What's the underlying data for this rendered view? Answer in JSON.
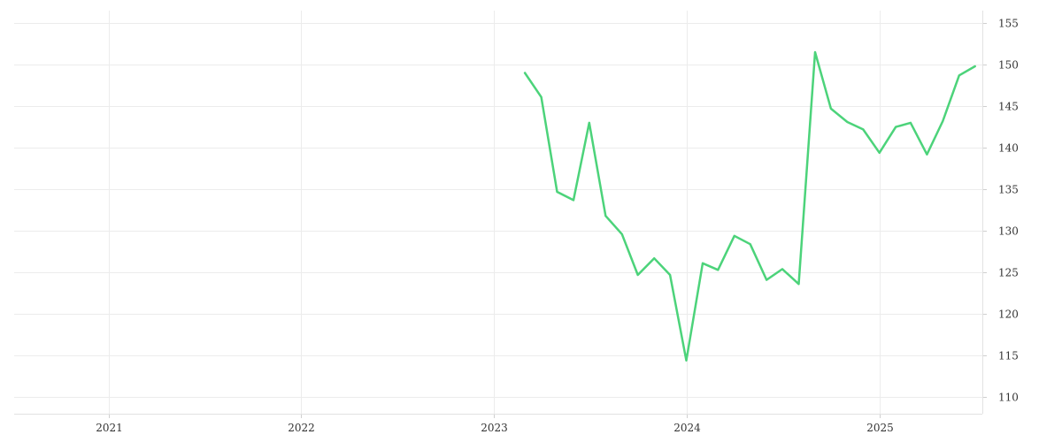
{
  "chart_data": {
    "type": "line",
    "title": "",
    "xlabel": "",
    "ylabel": "",
    "x_ticks": [
      "2021",
      "2022",
      "2023",
      "2024",
      "2025"
    ],
    "y_ticks": [
      110,
      115,
      120,
      125,
      130,
      135,
      140,
      145,
      150,
      155
    ],
    "xlim": [
      "2020-07-06",
      "2025-07-15"
    ],
    "ylim": [
      108,
      156.5
    ],
    "grid": true,
    "y_axis_position": "right",
    "legend": "none",
    "series": [
      {
        "color": "#4cd37a",
        "points": [
          {
            "x": "2023-03-01",
            "y": 149.0
          },
          {
            "x": "2023-04-01",
            "y": 146.1
          },
          {
            "x": "2023-05-01",
            "y": 134.7
          },
          {
            "x": "2023-06-01",
            "y": 133.7
          },
          {
            "x": "2023-07-01",
            "y": 143.0
          },
          {
            "x": "2023-08-01",
            "y": 131.8
          },
          {
            "x": "2023-09-01",
            "y": 129.6
          },
          {
            "x": "2023-10-01",
            "y": 124.7
          },
          {
            "x": "2023-11-01",
            "y": 126.7
          },
          {
            "x": "2023-12-01",
            "y": 124.7
          },
          {
            "x": "2024-01-01",
            "y": 114.4
          },
          {
            "x": "2024-02-01",
            "y": 126.1
          },
          {
            "x": "2024-03-01",
            "y": 125.3
          },
          {
            "x": "2024-04-01",
            "y": 129.4
          },
          {
            "x": "2024-05-01",
            "y": 128.4
          },
          {
            "x": "2024-06-01",
            "y": 124.1
          },
          {
            "x": "2024-07-01",
            "y": 125.4
          },
          {
            "x": "2024-08-01",
            "y": 123.6
          },
          {
            "x": "2024-09-01",
            "y": 151.5
          },
          {
            "x": "2024-10-01",
            "y": 144.7
          },
          {
            "x": "2024-11-01",
            "y": 143.1
          },
          {
            "x": "2024-12-01",
            "y": 142.2
          },
          {
            "x": "2025-01-01",
            "y": 139.4
          },
          {
            "x": "2025-02-01",
            "y": 142.5
          },
          {
            "x": "2025-03-01",
            "y": 143.0
          },
          {
            "x": "2025-04-01",
            "y": 139.2
          },
          {
            "x": "2025-05-01",
            "y": 143.2
          },
          {
            "x": "2025-06-01",
            "y": 148.7
          },
          {
            "x": "2025-07-01",
            "y": 149.8
          }
        ]
      }
    ]
  }
}
